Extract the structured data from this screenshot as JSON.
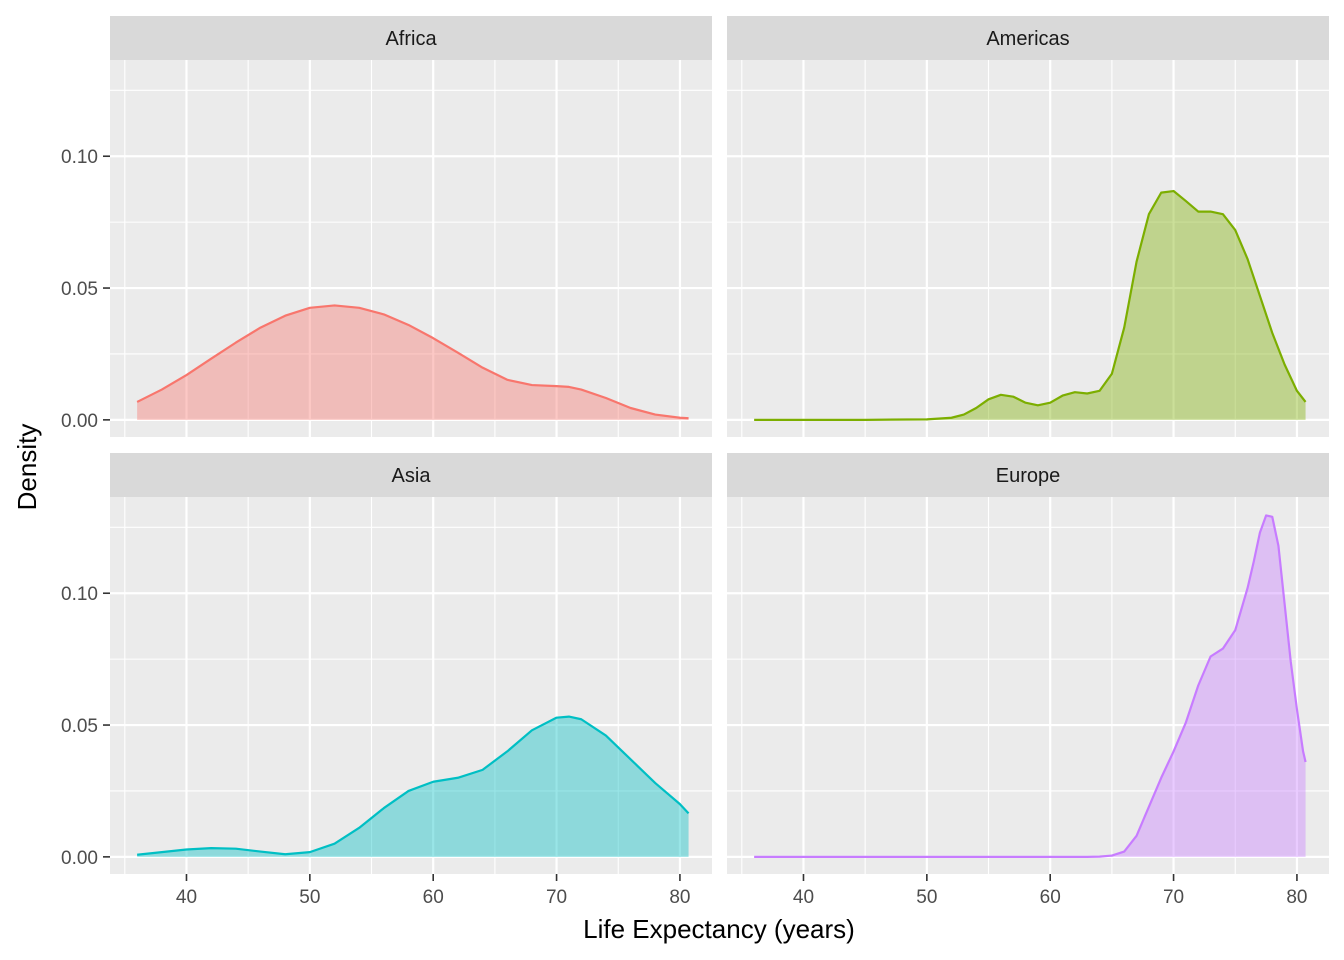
{
  "chart_data": {
    "type": "area",
    "xlabel": "Life Expectancy (years)",
    "ylabel": "Density",
    "xlim": [
      33.8,
      82.6
    ],
    "ylim": [
      -0.0065,
      0.1365
    ],
    "x_ticks": [
      40,
      50,
      60,
      70,
      80
    ],
    "x_tick_labels": [
      "40",
      "50",
      "60",
      "70",
      "80"
    ],
    "y_ticks": [
      0,
      0.05,
      0.1
    ],
    "y_tick_labels": [
      "0.00",
      "0.05",
      "0.10"
    ],
    "grid": true,
    "layout": "2x2 facets",
    "panels": [
      {
        "name": "Africa",
        "color": "#F8766D",
        "fill": "#F8766D",
        "x": [
          36,
          38,
          40,
          42,
          44,
          46,
          48,
          50,
          52,
          54,
          56,
          58,
          60,
          62,
          64,
          66,
          68,
          70,
          71,
          72,
          74,
          76,
          78,
          80,
          80.7
        ],
        "y": [
          0.0068,
          0.0115,
          0.017,
          0.0232,
          0.0293,
          0.035,
          0.0395,
          0.0425,
          0.0434,
          0.0425,
          0.04,
          0.036,
          0.031,
          0.0255,
          0.0198,
          0.0152,
          0.0132,
          0.0128,
          0.0125,
          0.0115,
          0.0083,
          0.0045,
          0.002,
          0.0008,
          0.0006
        ]
      },
      {
        "name": "Americas",
        "color": "#7CAE00",
        "fill": "#7CAE00",
        "x": [
          36,
          40,
          45,
          50,
          52,
          53,
          54,
          55,
          56,
          57,
          58,
          59,
          60,
          61,
          62,
          63,
          64,
          65,
          66,
          67,
          68,
          69,
          70,
          71,
          72,
          73,
          74,
          75,
          76,
          77,
          78,
          79,
          80,
          80.7
        ],
        "y": [
          0,
          0,
          0,
          0.0002,
          0.0008,
          0.002,
          0.0045,
          0.0078,
          0.0095,
          0.0088,
          0.0065,
          0.0055,
          0.0065,
          0.0092,
          0.0105,
          0.01,
          0.011,
          0.0175,
          0.035,
          0.06,
          0.078,
          0.0862,
          0.0868,
          0.083,
          0.079,
          0.079,
          0.078,
          0.072,
          0.061,
          0.047,
          0.033,
          0.021,
          0.011,
          0.0068
        ]
      },
      {
        "name": "Asia",
        "color": "#00BFC4",
        "fill": "#00BFC4",
        "x": [
          36,
          38,
          40,
          42,
          44,
          46,
          48,
          50,
          52,
          54,
          56,
          58,
          60,
          62,
          64,
          66,
          68,
          70,
          71,
          72,
          74,
          76,
          78,
          80,
          80.7
        ],
        "y": [
          0.0008,
          0.0018,
          0.0028,
          0.0033,
          0.0031,
          0.002,
          0.001,
          0.0018,
          0.005,
          0.011,
          0.0185,
          0.025,
          0.0285,
          0.03,
          0.033,
          0.04,
          0.048,
          0.0528,
          0.0532,
          0.0522,
          0.046,
          0.037,
          0.028,
          0.02,
          0.0165
        ]
      },
      {
        "name": "Europe",
        "color": "#C77CFF",
        "fill": "#C77CFF",
        "x": [
          36,
          40,
          45,
          50,
          55,
          60,
          63,
          64,
          65,
          66,
          67,
          68,
          69,
          70,
          71,
          72,
          73,
          74,
          75,
          76,
          76.5,
          77,
          77.5,
          78,
          78.5,
          79,
          79.5,
          80,
          80.5,
          80.7
        ],
        "y": [
          0,
          0,
          0,
          0,
          0,
          0,
          0,
          0.0001,
          0.0005,
          0.002,
          0.008,
          0.019,
          0.03,
          0.04,
          0.051,
          0.065,
          0.076,
          0.079,
          0.086,
          0.102,
          0.112,
          0.123,
          0.1295,
          0.129,
          0.118,
          0.096,
          0.074,
          0.056,
          0.04,
          0.036
        ]
      }
    ]
  }
}
